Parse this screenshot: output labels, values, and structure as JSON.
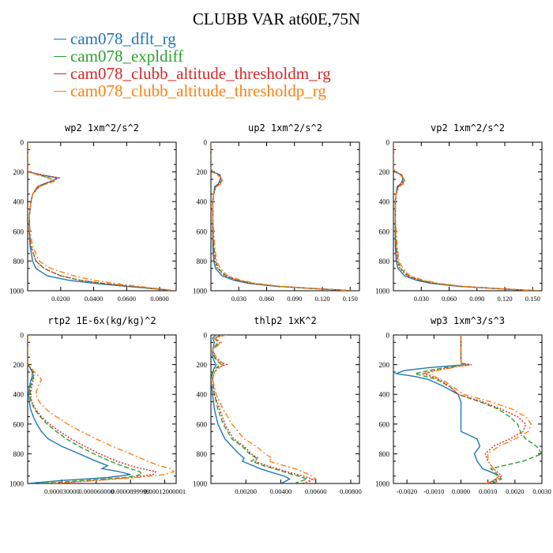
{
  "page_title": "CLUBB VAR at60E,75N",
  "colors": {
    "blue": "#1f77b4",
    "green": "#2ca02c",
    "red": "#d62728",
    "orange": "#ff7f0e"
  },
  "legend": [
    {
      "label": "cam078_dflt_rg",
      "color": "#1f77b4"
    },
    {
      "label": "cam078_expldiff",
      "color": "#2ca02c"
    },
    {
      "label": "cam078_clubb_altitude_thresholdm_rg",
      "color": "#d62728"
    },
    {
      "label": "cam078_clubb_altitude_thresholdp_rg",
      "color": "#ff7f0e"
    }
  ],
  "chart_data": [
    {
      "type": "line",
      "title": "wp2 1xm^2/s^2",
      "xlim": [
        0,
        0.09
      ],
      "ylim": [
        0,
        1000
      ],
      "xticks": [
        0.02,
        0.04,
        0.06,
        0.08
      ],
      "xticklabels": [
        "0.0200",
        "0.0400",
        "0.0600",
        "0.0800"
      ],
      "yticks": [
        0,
        200,
        400,
        600,
        800,
        1000
      ],
      "y": [
        0,
        100,
        180,
        200,
        220,
        240,
        260,
        280,
        300,
        350,
        400,
        500,
        600,
        700,
        800,
        850,
        900,
        930,
        950,
        970,
        985,
        995,
        1000
      ],
      "series": [
        {
          "name": "cam078_dflt_rg",
          "x": [
            0,
            0,
            0,
            0.0005,
            0.008,
            0.018,
            0.015,
            0.01,
            0.006,
            0.003,
            0.002,
            0.001,
            0.001,
            0.0015,
            0.003,
            0.005,
            0.012,
            0.025,
            0.04,
            0.06,
            0.075,
            0.085,
            0.088
          ]
        },
        {
          "name": "cam078_expldiff",
          "x": [
            0,
            0,
            0,
            0.0005,
            0.007,
            0.013,
            0.016,
            0.011,
            0.007,
            0.003,
            0.002,
            0.001,
            0.001,
            0.002,
            0.005,
            0.01,
            0.02,
            0.032,
            0.045,
            0.062,
            0.076,
            0.085,
            0.088
          ]
        },
        {
          "name": "cam078_clubb_altitude_thresholdm_rg",
          "x": [
            0,
            0,
            0,
            0.0005,
            0.009,
            0.019,
            0.015,
            0.01,
            0.006,
            0.003,
            0.002,
            0.001,
            0.001,
            0.002,
            0.005,
            0.01,
            0.02,
            0.032,
            0.045,
            0.062,
            0.076,
            0.085,
            0.088
          ]
        },
        {
          "name": "cam078_clubb_altitude_thresholdp_rg",
          "x": [
            0,
            0,
            0,
            0.0005,
            0.006,
            0.012,
            0.017,
            0.012,
            0.007,
            0.003,
            0.002,
            0.001,
            0.0015,
            0.003,
            0.007,
            0.014,
            0.028,
            0.04,
            0.052,
            0.067,
            0.078,
            0.086,
            0.088
          ]
        }
      ]
    },
    {
      "type": "line",
      "title": "up2 1xm^2/s^2",
      "xlim": [
        0,
        0.16
      ],
      "ylim": [
        0,
        1000
      ],
      "xticks": [
        0.03,
        0.06,
        0.09,
        0.12,
        0.15
      ],
      "xticklabels": [
        "0.030",
        "0.060",
        "0.090",
        "0.120",
        "0.150"
      ],
      "yticks": [
        0,
        200,
        400,
        600,
        800,
        1000
      ],
      "y": [
        0,
        100,
        180,
        200,
        220,
        250,
        280,
        300,
        350,
        400,
        500,
        600,
        700,
        800,
        850,
        900,
        930,
        950,
        970,
        985,
        995,
        1000
      ],
      "series": [
        {
          "name": "cam078_dflt_rg",
          "x": [
            0,
            0,
            0,
            0.002,
            0.01,
            0.01,
            0.008,
            0.004,
            0.003,
            0.002,
            0.002,
            0.002,
            0.002,
            0.003,
            0.005,
            0.012,
            0.025,
            0.04,
            0.07,
            0.11,
            0.14,
            0.15
          ]
        },
        {
          "name": "cam078_expldiff",
          "x": [
            0,
            0,
            0,
            0.002,
            0.008,
            0.012,
            0.01,
            0.005,
            0.003,
            0.002,
            0.002,
            0.002,
            0.003,
            0.005,
            0.008,
            0.016,
            0.03,
            0.045,
            0.072,
            0.11,
            0.14,
            0.15
          ]
        },
        {
          "name": "cam078_clubb_altitude_thresholdm_rg",
          "x": [
            0,
            0,
            0,
            0.002,
            0.009,
            0.011,
            0.009,
            0.005,
            0.003,
            0.002,
            0.002,
            0.002,
            0.003,
            0.004,
            0.007,
            0.015,
            0.028,
            0.043,
            0.071,
            0.11,
            0.14,
            0.15
          ]
        },
        {
          "name": "cam078_clubb_altitude_thresholdp_rg",
          "x": [
            0,
            0,
            0,
            0.002,
            0.007,
            0.013,
            0.011,
            0.006,
            0.003,
            0.002,
            0.002,
            0.003,
            0.004,
            0.006,
            0.01,
            0.018,
            0.033,
            0.048,
            0.075,
            0.112,
            0.14,
            0.15
          ]
        }
      ]
    },
    {
      "type": "line",
      "title": "vp2 1xm^2/s^2",
      "xlim": [
        0,
        0.16
      ],
      "ylim": [
        0,
        1000
      ],
      "xticks": [
        0.03,
        0.06,
        0.09,
        0.12,
        0.15
      ],
      "xticklabels": [
        "0.030",
        "0.060",
        "0.090",
        "0.120",
        "0.150"
      ],
      "yticks": [
        0,
        200,
        400,
        600,
        800,
        1000
      ],
      "y": [
        0,
        100,
        180,
        200,
        220,
        250,
        280,
        300,
        350,
        400,
        500,
        600,
        700,
        800,
        850,
        900,
        930,
        950,
        970,
        985,
        995,
        1000
      ],
      "series": [
        {
          "name": "cam078_dflt_rg",
          "x": [
            0,
            0,
            0,
            0.002,
            0.009,
            0.01,
            0.008,
            0.004,
            0.003,
            0.002,
            0.002,
            0.002,
            0.002,
            0.003,
            0.005,
            0.012,
            0.025,
            0.04,
            0.07,
            0.11,
            0.14,
            0.155
          ]
        },
        {
          "name": "cam078_expldiff",
          "x": [
            0,
            0,
            0,
            0.002,
            0.008,
            0.012,
            0.01,
            0.005,
            0.003,
            0.002,
            0.002,
            0.002,
            0.003,
            0.005,
            0.008,
            0.016,
            0.03,
            0.045,
            0.072,
            0.11,
            0.14,
            0.155
          ]
        },
        {
          "name": "cam078_clubb_altitude_thresholdm_rg",
          "x": [
            0,
            0,
            0,
            0.002,
            0.009,
            0.011,
            0.009,
            0.005,
            0.003,
            0.002,
            0.002,
            0.002,
            0.003,
            0.004,
            0.007,
            0.015,
            0.028,
            0.043,
            0.071,
            0.11,
            0.14,
            0.155
          ]
        },
        {
          "name": "cam078_clubb_altitude_thresholdp_rg",
          "x": [
            0,
            0,
            0,
            0.002,
            0.007,
            0.013,
            0.011,
            0.006,
            0.003,
            0.002,
            0.002,
            0.003,
            0.004,
            0.006,
            0.01,
            0.018,
            0.033,
            0.048,
            0.075,
            0.112,
            0.14,
            0.155
          ]
        }
      ]
    },
    {
      "type": "line",
      "title": "rtp2 1E-6x(kg/kg)^2",
      "xlim": [
        0,
        0.00013
      ],
      "ylim": [
        0,
        1000
      ],
      "xticks": [
        3e-05,
        6e-05,
        9e-05,
        0.00012
      ],
      "xticklabels": [
        "0.000030000",
        "0.000060000",
        "0.0000899999",
        "0.00012000001"
      ],
      "yticks": [
        0,
        200,
        400,
        600,
        800,
        1000
      ],
      "y": [
        0,
        100,
        180,
        200,
        220,
        250,
        280,
        300,
        350,
        400,
        450,
        500,
        550,
        600,
        650,
        700,
        750,
        800,
        850,
        880,
        900,
        920,
        940,
        960,
        980,
        1000
      ],
      "series": [
        {
          "name": "cam078_dflt_rg",
          "x": [
            0,
            0,
            0,
            5e-07,
            2e-06,
            4e-06,
            4e-06,
            3e-06,
            1.5e-06,
            1e-06,
            1.5e-06,
            2.5e-06,
            5e-06,
            8e-06,
            1.2e-05,
            1.8e-05,
            3e-05,
            4.5e-05,
            6e-05,
            7e-05,
            6.5e-05,
            8e-05,
            9e-05,
            7e-05,
            3e-05,
            0
          ]
        },
        {
          "name": "cam078_expldiff",
          "x": [
            0,
            0,
            0,
            5e-07,
            2e-06,
            4.5e-06,
            5e-06,
            4e-06,
            2.5e-06,
            2e-06,
            3e-06,
            6e-06,
            1.1e-05,
            1.7e-05,
            2.5e-05,
            3.4e-05,
            4.5e-05,
            5.8e-05,
            7.2e-05,
            8.2e-05,
            9e-05,
            9.8e-05,
            0.0001,
            8.5e-05,
            5e-05,
            1e-05
          ]
        },
        {
          "name": "cam078_clubb_altitude_thresholdm_rg",
          "x": [
            0,
            0,
            0,
            5e-07,
            2.5e-06,
            5e-06,
            5.5e-06,
            5e-06,
            3.5e-06,
            2.5e-06,
            3.5e-06,
            7e-06,
            1.2e-05,
            1.9e-05,
            2.8e-05,
            3.8e-05,
            5e-05,
            6.3e-05,
            7.8e-05,
            9e-05,
            0.0001,
            0.000112,
            0.00011,
            9e-05,
            6e-05,
            2e-05
          ]
        },
        {
          "name": "cam078_clubb_altitude_thresholdp_rg",
          "x": [
            0,
            0,
            0,
            5e-07,
            3e-06,
            6e-06,
            1e-05,
            1.2e-05,
            9e-06,
            7e-06,
            1e-05,
            1.6e-05,
            2.5e-05,
            3.5e-05,
            4.7e-05,
            6e-05,
            7.4e-05,
            9e-05,
            0.000105,
            0.000115,
            0.000125,
            0.000128,
            0.00012,
            9.5e-05,
            6e-05,
            2e-05
          ]
        }
      ]
    },
    {
      "type": "line",
      "title": "thlp2 1xK^2",
      "xlim": [
        0,
        0.0085
      ],
      "ylim": [
        0,
        1000
      ],
      "xticks": [
        0.002,
        0.004,
        0.006,
        0.008
      ],
      "xticklabels": [
        "0.00200",
        "0.00400",
        "0.00600",
        "0.00800"
      ],
      "yticks": [
        0,
        200,
        400,
        600,
        800,
        1000
      ],
      "y": [
        0,
        20,
        50,
        100,
        150,
        180,
        200,
        220,
        250,
        300,
        400,
        500,
        600,
        700,
        750,
        800,
        830,
        850,
        880,
        900,
        930,
        950,
        970,
        990,
        1000
      ],
      "series": [
        {
          "name": "cam078_dflt_rg",
          "x": [
            0.0003,
            0.0001,
            0.0002,
            0.0001,
            0.0001,
            0.0002,
            0.0003,
            0.0002,
            0.0001,
            0,
            0.0001,
            0.0002,
            0.0004,
            0.0008,
            0.0012,
            0.0016,
            0.0019,
            0.0018,
            0.0024,
            0.0028,
            0.0036,
            0.0042,
            0.0045,
            0.0042,
            0.004
          ]
        },
        {
          "name": "cam078_expldiff",
          "x": [
            0.0006,
            0.0002,
            0.0004,
            0.0001,
            0.0002,
            0.0004,
            0.0006,
            0.0003,
            0.0001,
            0.0001,
            0.0002,
            0.0004,
            0.0007,
            0.0012,
            0.0018,
            0.0022,
            0.0026,
            0.0023,
            0.003,
            0.0036,
            0.0044,
            0.005,
            0.0055,
            0.005,
            0.0048
          ]
        },
        {
          "name": "cam078_clubb_altitude_thresholdm_rg",
          "x": [
            0.0007,
            0.0002,
            0.0005,
            0.0001,
            0.0002,
            0.0005,
            0.0009,
            0.0004,
            0.0002,
            0.0001,
            0.0002,
            0.0005,
            0.0008,
            0.0013,
            0.0019,
            0.0023,
            0.0027,
            0.0025,
            0.0032,
            0.0038,
            0.0046,
            0.0053,
            0.0058,
            0.0055,
            0.0052
          ]
        },
        {
          "name": "cam078_clubb_altitude_thresholdp_rg",
          "x": [
            0.0009,
            0.0002,
            0.0006,
            0.0001,
            0.0003,
            0.0006,
            0.0007,
            0.0005,
            0.0002,
            0.0001,
            0.0003,
            0.0007,
            0.0012,
            0.0019,
            0.0026,
            0.0031,
            0.0035,
            0.0033,
            0.0042,
            0.0048,
            0.0054,
            0.0058,
            0.006,
            0.0056,
            0.0054
          ]
        }
      ]
    },
    {
      "type": "line",
      "title": "wp3 1xm^3/s^3",
      "xlim": [
        -0.0025,
        0.003
      ],
      "ylim": [
        0,
        1000
      ],
      "xticks": [
        -0.002,
        -0.001,
        0,
        0.001,
        0.002,
        0.003
      ],
      "xticklabels": [
        "-0.0020",
        "-0.0010",
        "0.0000",
        "0.0010",
        "0.0020",
        "0.0030"
      ],
      "yticks": [
        0,
        200,
        400,
        600,
        800,
        1000
      ],
      "y": [
        0,
        100,
        190,
        200,
        220,
        240,
        260,
        280,
        300,
        350,
        400,
        450,
        500,
        550,
        600,
        650,
        700,
        750,
        800,
        850,
        900,
        930,
        950,
        970,
        990,
        1000
      ],
      "series": [
        {
          "name": "cam078_dflt_rg",
          "x": [
            0,
            0,
            0,
            0.0002,
            -0.0012,
            -0.0021,
            -0.0024,
            -0.0017,
            -0.0012,
            -0.0006,
            -0.0001,
            0,
            0,
            0,
            0,
            0,
            0.0006,
            0.0007,
            0.0005,
            0.0006,
            0.0008,
            0.0012,
            0.0014,
            0.0013,
            0.0011,
            0.0009
          ]
        },
        {
          "name": "cam078_expldiff",
          "x": [
            0,
            0,
            0,
            0.0003,
            -0.0006,
            -0.0012,
            -0.0017,
            -0.0013,
            -0.0009,
            -0.0004,
            -0.0001,
            0.0007,
            0.0014,
            0.0018,
            0.0021,
            0.0022,
            0.0024,
            0.0028,
            0.003,
            0.0023,
            0.0011,
            0.0013,
            0.0014,
            0.0015,
            0.0013,
            0.001
          ]
        },
        {
          "name": "cam078_clubb_altitude_thresholdm_rg",
          "x": [
            0,
            0,
            0,
            0.0004,
            -0.0004,
            -0.001,
            -0.0014,
            -0.0011,
            -0.0008,
            -0.0004,
            -0.0001,
            0.0008,
            0.0015,
            0.0021,
            0.0024,
            0.0023,
            0.0018,
            0.0012,
            0.0009,
            0.001,
            0.0012,
            0.0014,
            0.0015,
            0.0014,
            0.0012,
            0.001
          ]
        },
        {
          "name": "cam078_clubb_altitude_thresholdp_rg",
          "x": [
            0,
            0,
            0,
            0.0002,
            -0.0003,
            -0.0009,
            -0.0013,
            -0.001,
            -0.0007,
            -0.0003,
            0.0001,
            0.0011,
            0.0019,
            0.0024,
            0.0026,
            0.0025,
            0.002,
            0.0014,
            0.001,
            0.001,
            0.0012,
            0.0013,
            0.0014,
            0.0013,
            0.0011,
            0.0009
          ]
        }
      ]
    }
  ]
}
